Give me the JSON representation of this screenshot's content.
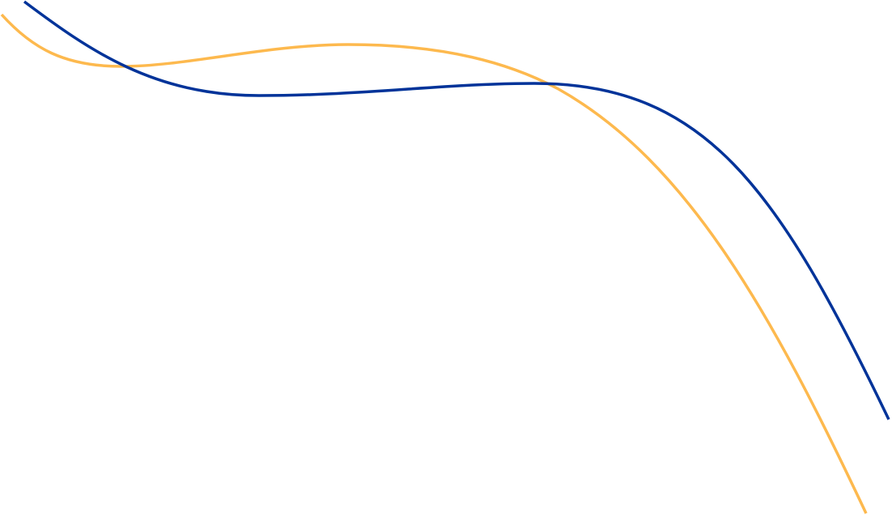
{
  "background_color": "#ffffff",
  "curves": [
    {
      "id": "blue-curve",
      "color": "#003399"
    },
    {
      "id": "orange-curve",
      "color": "#FDB94E"
    }
  ]
}
